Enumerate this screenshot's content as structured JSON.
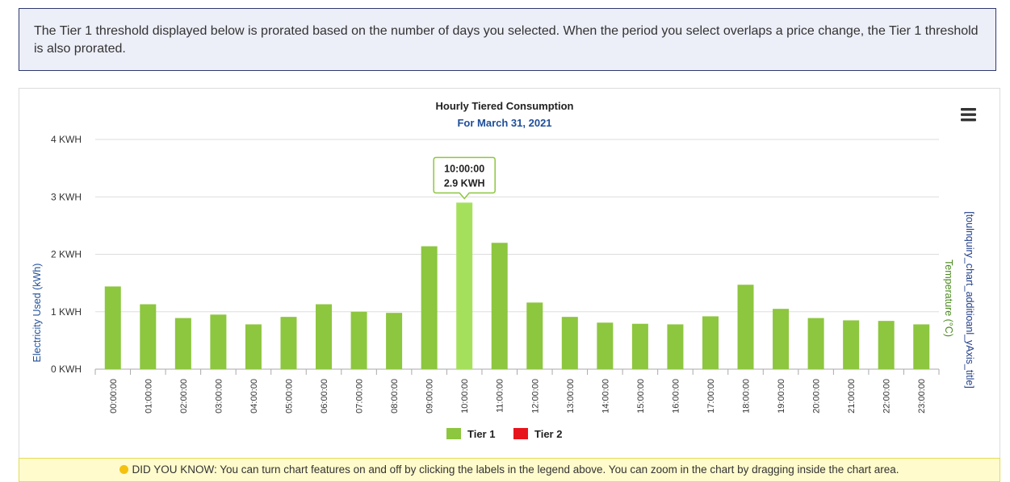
{
  "notice": {
    "text": "The Tier 1 threshold displayed below is prorated based on the number of days you selected. When the period you select overlaps a price change, the Tier 1 threshold is also prorated."
  },
  "menu_icon": "hamburger-menu-icon",
  "chart_data": {
    "type": "bar",
    "title": "Hourly Tiered Consumption",
    "subtitle": "For March 31, 2021",
    "ylabel": "Electricity Used (kWh)",
    "y2label_temperature": "Temperature (°C)",
    "y2label_additional": "[toulnquiry_chart_additioanl_yAxis_title]",
    "ylim": [
      0,
      4
    ],
    "yticks": [
      0,
      1,
      2,
      3,
      4
    ],
    "ytick_labels": [
      "0 KWH",
      "1 KWH",
      "2 KWH",
      "3 KWH",
      "4 KWH"
    ],
    "categories": [
      "00:00:00",
      "01:00:00",
      "02:00:00",
      "03:00:00",
      "04:00:00",
      "05:00:00",
      "06:00:00",
      "07:00:00",
      "08:00:00",
      "09:00:00",
      "10:00:00",
      "11:00:00",
      "12:00:00",
      "13:00:00",
      "14:00:00",
      "15:00:00",
      "16:00:00",
      "17:00:00",
      "18:00:00",
      "19:00:00",
      "20:00:00",
      "21:00:00",
      "22:00:00",
      "23:00:00"
    ],
    "series": [
      {
        "name": "Tier 1",
        "color": "#8dc63f",
        "values": [
          1.44,
          1.13,
          0.89,
          0.95,
          0.78,
          0.91,
          1.13,
          1.0,
          0.98,
          2.14,
          2.9,
          2.2,
          1.16,
          0.91,
          0.81,
          0.79,
          0.78,
          0.92,
          1.47,
          1.05,
          0.89,
          0.85,
          0.84,
          0.78
        ]
      },
      {
        "name": "Tier 2",
        "color": "#e8141b",
        "values": [
          0,
          0,
          0,
          0,
          0,
          0,
          0,
          0,
          0,
          0,
          0,
          0,
          0,
          0,
          0,
          0,
          0,
          0,
          0,
          0,
          0,
          0,
          0,
          0
        ]
      }
    ],
    "tooltip": {
      "category": "10:00:00",
      "value_label": "2.9 KWH"
    },
    "highlight_color": "#a5e05c",
    "grid": true,
    "legend_position": "bottom-center"
  },
  "did_you_know": {
    "text": "DID YOU KNOW: You can turn chart features on and off by clicking the labels in the legend above. You can zoom in the chart by dragging inside the chart area."
  }
}
